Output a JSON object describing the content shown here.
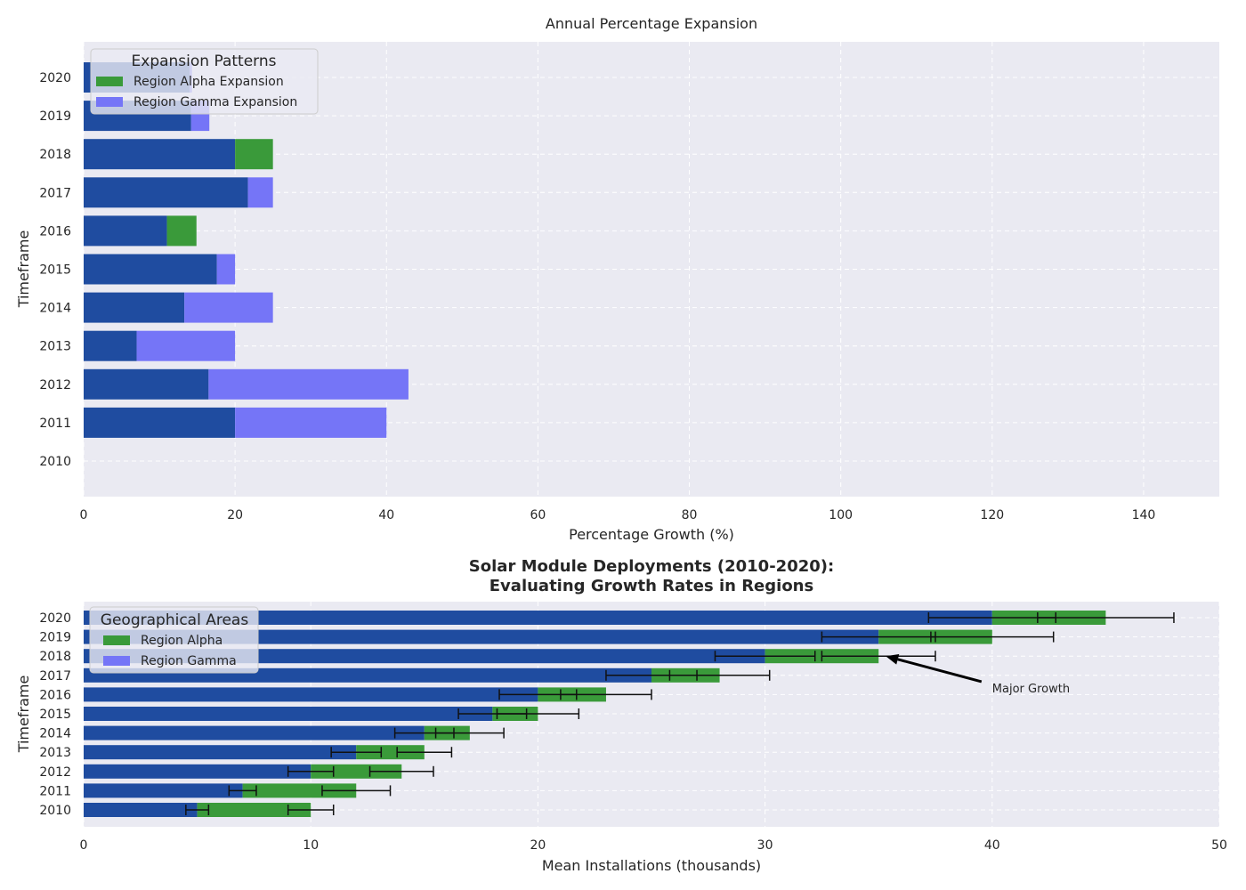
{
  "chart_data": [
    {
      "type": "bar",
      "orientation": "horizontal",
      "stacked": true,
      "title": "Annual Percentage Expansion",
      "xlabel": "Percentage Growth (%)",
      "ylabel": "Timeframe",
      "xlim": [
        0,
        150
      ],
      "xticks": [
        "0",
        "20",
        "40",
        "60",
        "80",
        "100",
        "120",
        "140"
      ],
      "grid": true,
      "categories": [
        "2010",
        "2011",
        "2012",
        "2013",
        "2014",
        "2015",
        "2016",
        "2017",
        "2018",
        "2019",
        "2020"
      ],
      "series": [
        {
          "values": [
            null,
            20,
            16.5,
            7,
            13.3,
            17.6,
            11,
            21.7,
            20,
            14.2,
            14
          ],
          "color": "#1f4ca0"
        },
        {
          "name": "Region Alpha Expansion",
          "values": [
            null,
            0,
            0,
            0,
            0,
            0,
            3.9,
            0,
            5,
            0,
            0
          ],
          "color": "#3a9a3a"
        },
        {
          "name": "Region Gamma Expansion",
          "values": [
            null,
            20,
            26.4,
            13,
            11.7,
            2.4,
            0,
            3.3,
            0,
            2.4,
            0.3
          ],
          "color": "#7575f7"
        }
      ],
      "legend": {
        "title": "Expansion Patterns",
        "placement": "top-left",
        "entries": [
          "Region Alpha Expansion",
          "Region Gamma Expansion"
        ]
      }
    },
    {
      "type": "bar",
      "orientation": "horizontal",
      "stacked": true,
      "title": "Solar Module Deployments (2010-2020):\nEvaluating Growth Rates in Regions",
      "title_lines": [
        "Solar Module Deployments (2010-2020):",
        "Evaluating Growth Rates in Regions"
      ],
      "xlabel": "Mean Installations (thousands)",
      "ylabel": "Timeframe",
      "xlim": [
        0,
        50
      ],
      "xticks": [
        "0",
        "10",
        "20",
        "30",
        "40",
        "50"
      ],
      "grid": true,
      "categories": [
        "2010",
        "2011",
        "2012",
        "2013",
        "2014",
        "2015",
        "2016",
        "2017",
        "2018",
        "2019",
        "2020"
      ],
      "series": [
        {
          "name": "Region Alpha",
          "values": [
            5,
            7,
            10,
            12,
            15,
            18,
            20,
            25,
            30,
            35,
            40
          ],
          "errors": [
            0.5,
            0.6,
            1.0,
            1.1,
            1.3,
            1.5,
            1.7,
            2.0,
            2.2,
            2.5,
            2.8
          ],
          "color": "#1f4ca0"
        },
        {
          "name": "Region Gamma",
          "values": [
            5,
            5,
            4,
            3,
            2,
            2,
            3,
            3,
            5,
            5,
            5
          ],
          "errors": [
            1.0,
            1.5,
            1.4,
            1.2,
            1.5,
            1.8,
            2.0,
            2.2,
            2.5,
            2.7,
            3.0
          ],
          "color": "#3a9a3a"
        }
      ],
      "legend": {
        "title": "Geographical Areas",
        "placement": "top-left",
        "entries": [
          "Region Alpha",
          "Region Gamma"
        ]
      },
      "legend_colors": [
        "#3a9a3a",
        "#7575f7"
      ],
      "annotation": {
        "text": "Major Growth",
        "point": {
          "x": 35,
          "y": "2018"
        },
        "text_at": {
          "x": 40,
          "y": "2016.3"
        }
      }
    }
  ]
}
